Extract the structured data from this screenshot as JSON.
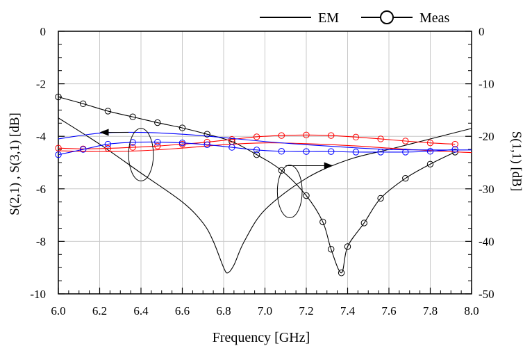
{
  "chart_data": {
    "type": "line",
    "xlabel": "Frequency [GHz]",
    "ylabel_left": "S(2,1) , S(3,1) [dB]",
    "ylabel_right": "S(1,1) [dB]",
    "xlim": [
      6.0,
      8.0
    ],
    "ylim_left": [
      -10,
      0
    ],
    "ylim_right": [
      -50,
      0
    ],
    "x_ticks": [
      "6.0",
      "6.2",
      "6.4",
      "6.6",
      "6.8",
      "7.0",
      "7.2",
      "7.4",
      "7.6",
      "7.8",
      "8.0"
    ],
    "y_ticks_left": [
      "0",
      "-2",
      "-4",
      "-6",
      "-8",
      "-10"
    ],
    "y_ticks_right": [
      "0",
      "-10",
      "-20",
      "-30",
      "-40",
      "-50"
    ],
    "grid": true,
    "legend_position": "top-right",
    "legend": [
      {
        "label": "EM",
        "style": "line"
      },
      {
        "label": "Meas",
        "style": "line-circle"
      }
    ],
    "series": [
      {
        "axis": "right",
        "color": "#000000",
        "style": "EM",
        "x": [
          6.0,
          6.2,
          6.4,
          6.6,
          6.7,
          6.75,
          6.8,
          6.82,
          6.85,
          6.9,
          7.0,
          7.2,
          7.4,
          7.6,
          7.8,
          8.0
        ],
        "y": [
          -16.5,
          -21.5,
          -27.0,
          -32.5,
          -36.5,
          -40.0,
          -45.0,
          -46.0,
          -44.5,
          -40.0,
          -34.0,
          -28.0,
          -24.5,
          -22.5,
          -20.5,
          -18.5
        ]
      },
      {
        "axis": "right",
        "color": "#000000",
        "style": "Meas",
        "x": [
          6.0,
          6.12,
          6.24,
          6.36,
          6.48,
          6.6,
          6.72,
          6.84,
          6.96,
          7.08,
          7.2,
          7.28,
          7.32,
          7.37,
          7.4,
          7.48,
          7.56,
          7.68,
          7.8,
          7.92
        ],
        "y": [
          -12.5,
          -13.8,
          -15.2,
          -16.3,
          -17.4,
          -18.4,
          -19.6,
          -21.0,
          -23.5,
          -26.5,
          -31.3,
          -36.3,
          -41.5,
          -46.0,
          -41.0,
          -36.5,
          -31.8,
          -28.0,
          -25.3,
          -23.0
        ]
      },
      {
        "axis": "left",
        "color": "#ff0000",
        "style": "EM",
        "x": [
          6.0,
          6.2,
          6.4,
          6.6,
          6.8,
          7.0,
          7.2,
          7.4,
          7.6,
          7.8,
          8.0
        ],
        "y": [
          -4.55,
          -4.58,
          -4.55,
          -4.45,
          -4.32,
          -4.25,
          -4.28,
          -4.35,
          -4.45,
          -4.55,
          -4.62
        ]
      },
      {
        "axis": "left",
        "color": "#ff0000",
        "style": "Meas",
        "x": [
          6.0,
          6.12,
          6.24,
          6.36,
          6.48,
          6.6,
          6.72,
          6.84,
          6.96,
          7.08,
          7.2,
          7.32,
          7.44,
          7.56,
          7.68,
          7.8,
          7.92
        ],
        "y": [
          -4.45,
          -4.48,
          -4.46,
          -4.42,
          -4.37,
          -4.3,
          -4.22,
          -4.12,
          -4.02,
          -3.97,
          -3.95,
          -3.97,
          -4.03,
          -4.1,
          -4.18,
          -4.25,
          -4.3
        ]
      },
      {
        "axis": "left",
        "color": "#0000ff",
        "style": "EM",
        "x": [
          6.0,
          6.2,
          6.4,
          6.6,
          6.8,
          7.0,
          7.2,
          7.4,
          7.6,
          7.8,
          8.0
        ],
        "y": [
          -4.1,
          -3.88,
          -3.85,
          -3.92,
          -4.05,
          -4.2,
          -4.32,
          -4.42,
          -4.5,
          -4.52,
          -4.52
        ]
      },
      {
        "axis": "left",
        "color": "#0000ff",
        "style": "Meas",
        "x": [
          6.0,
          6.12,
          6.24,
          6.36,
          6.48,
          6.6,
          6.72,
          6.84,
          6.96,
          7.08,
          7.2,
          7.32,
          7.44,
          7.56,
          7.68,
          7.8,
          7.92
        ],
        "y": [
          -4.7,
          -4.5,
          -4.3,
          -4.23,
          -4.22,
          -4.25,
          -4.32,
          -4.42,
          -4.52,
          -4.57,
          -4.58,
          -4.58,
          -4.6,
          -4.6,
          -4.6,
          -4.57,
          -4.5
        ]
      }
    ],
    "annotations": [
      {
        "type": "ellipse",
        "cx": 6.4,
        "cy": -4.7,
        "rx": 0.06,
        "ry": 1.0
      },
      {
        "type": "arrow",
        "from": [
          6.34,
          -3.85
        ],
        "to": [
          6.2,
          -3.85
        ]
      },
      {
        "type": "ellipse",
        "cx": 7.12,
        "cy": -6.1,
        "rx": 0.06,
        "ry": 1.0
      },
      {
        "type": "arrow",
        "from": [
          7.1,
          -5.12
        ],
        "to": [
          7.33,
          -5.12
        ]
      }
    ]
  }
}
